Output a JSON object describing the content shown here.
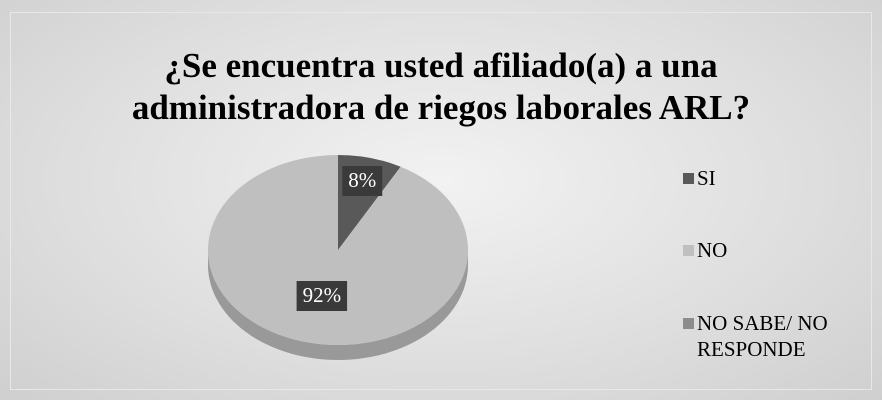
{
  "chart_data": {
    "type": "pie",
    "title": "¿Se encuentra usted afiliado(a) a una administradora de riegos laborales ARL?",
    "categories": [
      "SI",
      "NO",
      "NO SABE/ NO RESPONDE"
    ],
    "values": [
      8,
      92,
      0
    ],
    "value_labels": [
      "8%",
      "92%",
      null
    ],
    "colors": [
      "#595959",
      "#bfbfbf",
      "#8c8c8c"
    ],
    "legend": "right"
  }
}
